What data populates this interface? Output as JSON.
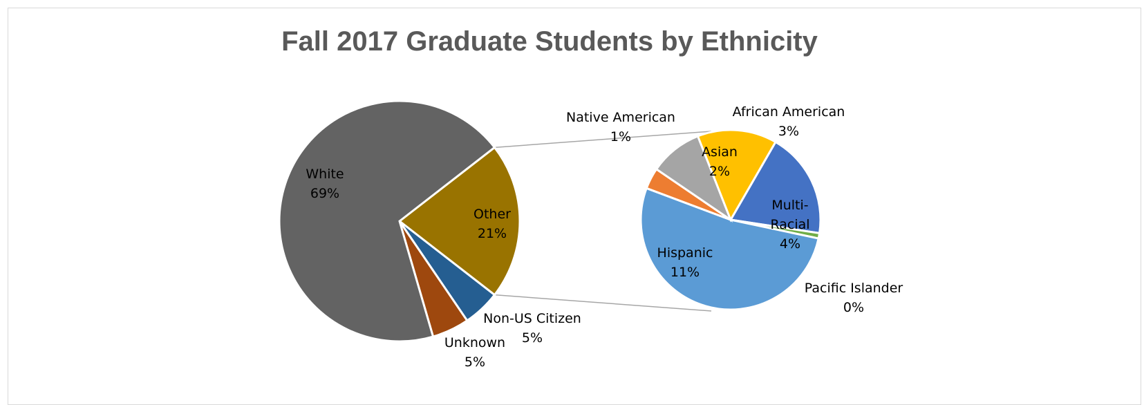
{
  "chart_data": {
    "type": "pie-of-pie",
    "title": "Fall 2017 Graduate Students by Ethnicity",
    "primary": {
      "slices": [
        {
          "name": "White",
          "label": "69%",
          "value": 69,
          "color": "#636363"
        },
        {
          "name": "Other",
          "label": "21%",
          "value": 21,
          "color": "#997300"
        },
        {
          "name": "Non-US Citizen",
          "label": "5%",
          "value": 5,
          "color": "#255e91"
        },
        {
          "name": "Unknown",
          "label": "5%",
          "value": 5,
          "color": "#9e480e"
        }
      ]
    },
    "secondary": {
      "parent": "Other",
      "slices": [
        {
          "name": "Multi-Racial",
          "label_lines": [
            "Multi-",
            "Racial"
          ],
          "label": "4%",
          "value": 4,
          "color": "#4472c4"
        },
        {
          "name": "Pacific Islander",
          "label": "0%",
          "value": 0.2,
          "color": "#70ad47"
        },
        {
          "name": "Hispanic",
          "label": "11%",
          "value": 11,
          "color": "#5b9bd5"
        },
        {
          "name": "Native American",
          "label": "1%",
          "value": 0.8,
          "color": "#ed7d31"
        },
        {
          "name": "Asian",
          "label": "2%",
          "value": 2,
          "color": "#a5a5a5"
        },
        {
          "name": "African American",
          "label": "3%",
          "value": 3,
          "color": "#ffc000"
        }
      ]
    },
    "legend": "none",
    "data_labels": "category-and-percent"
  }
}
